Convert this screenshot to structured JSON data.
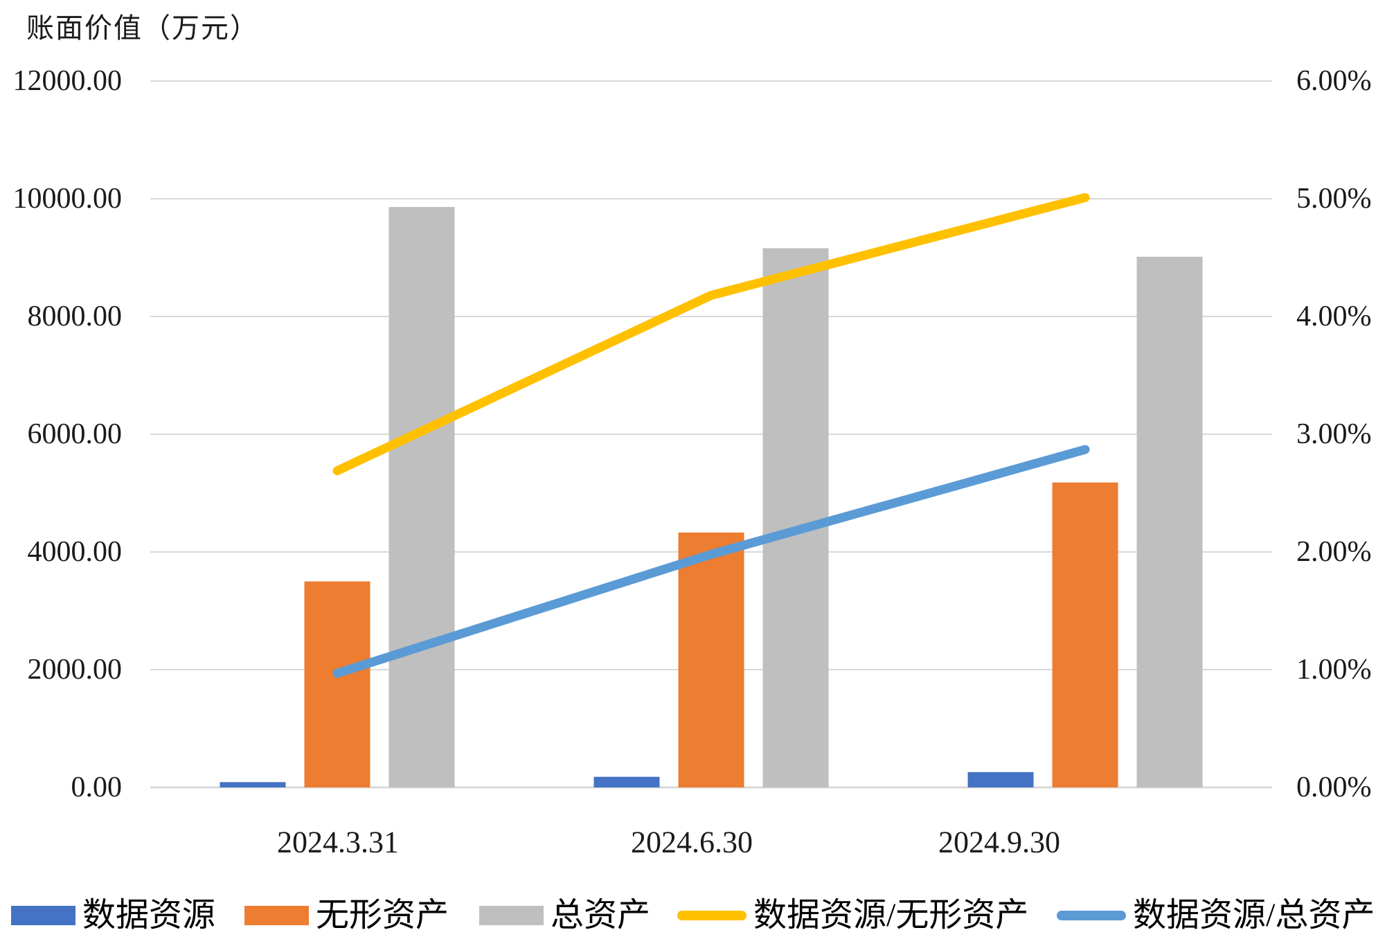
{
  "chart_data": {
    "type": "combo-bar-line",
    "title": "账面价值（万元）",
    "categories": [
      "2024.3.31",
      "2024.6.30",
      "2024.9.30"
    ],
    "bar_series": [
      {
        "name": "数据资源",
        "color": "#4472C4",
        "axis": "left",
        "values": [
          90,
          180,
          260
        ]
      },
      {
        "name": "无形资产",
        "color": "#ED7D31",
        "axis": "left",
        "values": [
          3500,
          4330,
          5180
        ]
      },
      {
        "name": "总资产",
        "color": "#BFBFBF",
        "axis": "left",
        "values": [
          9860,
          9160,
          9015
        ]
      }
    ],
    "line_series": [
      {
        "name": "数据资源/无形资产",
        "color": "#FFC000",
        "axis": "right",
        "values": [
          2.69,
          4.18,
          5.01
        ]
      },
      {
        "name": "数据资源/总资产",
        "color": "#5B9BD5",
        "axis": "right",
        "values": [
          0.97,
          1.98,
          2.87
        ]
      }
    ],
    "left_axis": {
      "title": "账面价值（万元）",
      "min": 0,
      "max": 12000,
      "step": 2000,
      "tick_labels": [
        "12000.00",
        "10000.00",
        "8000.00",
        "6000.00",
        "4000.00",
        "2000.00",
        "0.00"
      ]
    },
    "right_axis": {
      "unit": "%",
      "min": 0,
      "max": 6,
      "step": 1,
      "tick_labels": [
        "6.00%",
        "5.00%",
        "4.00%",
        "3.00%",
        "2.00%",
        "1.00%",
        "0.00%"
      ]
    },
    "grid": "horizontal",
    "legend_position": "bottom",
    "colors": {
      "gridline": "#D9D9D9",
      "axis_text": "#1a1a1a",
      "legend_text": "#000000"
    }
  }
}
